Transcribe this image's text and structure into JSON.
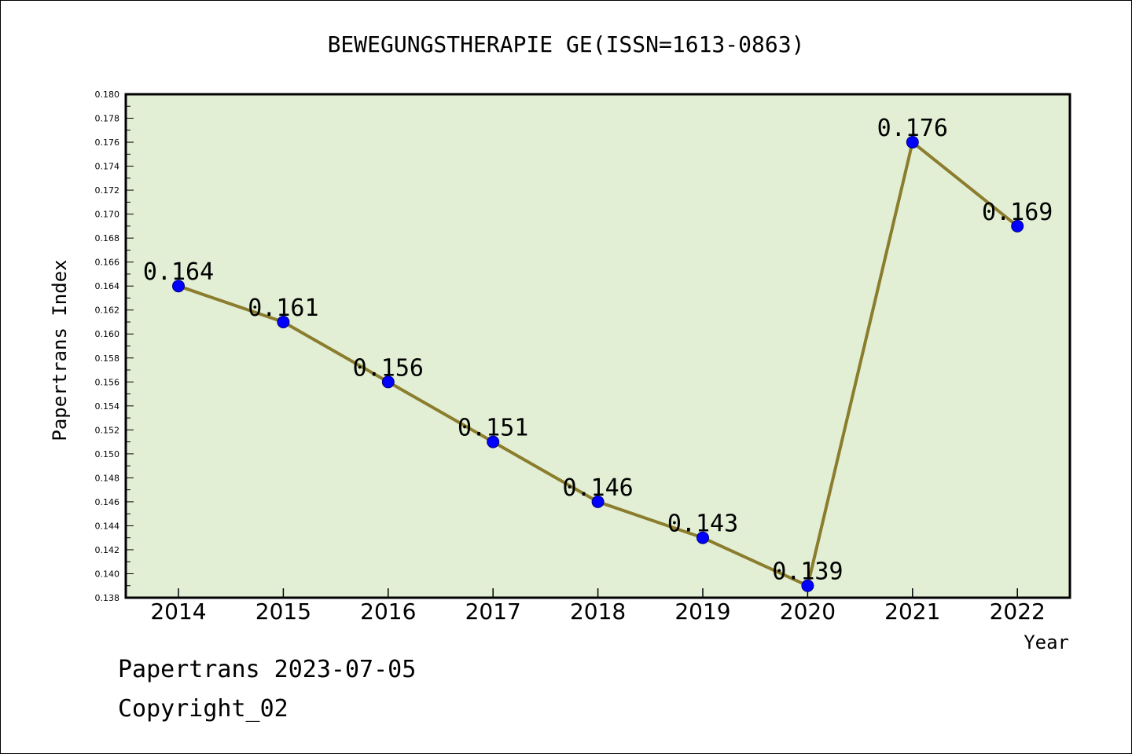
{
  "chart_data": {
    "type": "line",
    "title": "BEWEGUNGSTHERAPIE GE(ISSN=1613-0863)",
    "xlabel": "Year",
    "ylabel": "Papertrans Index",
    "categories": [
      "2014",
      "2015",
      "2016",
      "2017",
      "2018",
      "2019",
      "2020",
      "2021",
      "2022"
    ],
    "series": [
      {
        "values": [
          0.164,
          0.161,
          0.156,
          0.151,
          0.146,
          0.143,
          0.139,
          0.176,
          0.169
        ],
        "labels": [
          "0.164",
          "0.161",
          "0.156",
          "0.151",
          "0.146",
          "0.143",
          "0.139",
          "0.176",
          "0.169"
        ]
      }
    ],
    "ylim": [
      0.138,
      0.18
    ],
    "yticks": [
      "0.138",
      "0.140",
      "0.142",
      "0.144",
      "0.146",
      "0.148",
      "0.150",
      "0.152",
      "0.154",
      "0.156",
      "0.158",
      "0.160",
      "0.162",
      "0.164",
      "0.166",
      "0.168",
      "0.170",
      "0.172",
      "0.174",
      "0.176",
      "0.178",
      "0.180"
    ],
    "grid": false,
    "legend": "none",
    "colors": {
      "plot_background": "#e2efd5",
      "line": "#8b7d2d",
      "marker_fill": "#0000ff",
      "marker_edge": "#000080"
    }
  },
  "footer": {
    "date_line": "Papertrans 2023-07-05",
    "copyright": "Copyright_02"
  }
}
